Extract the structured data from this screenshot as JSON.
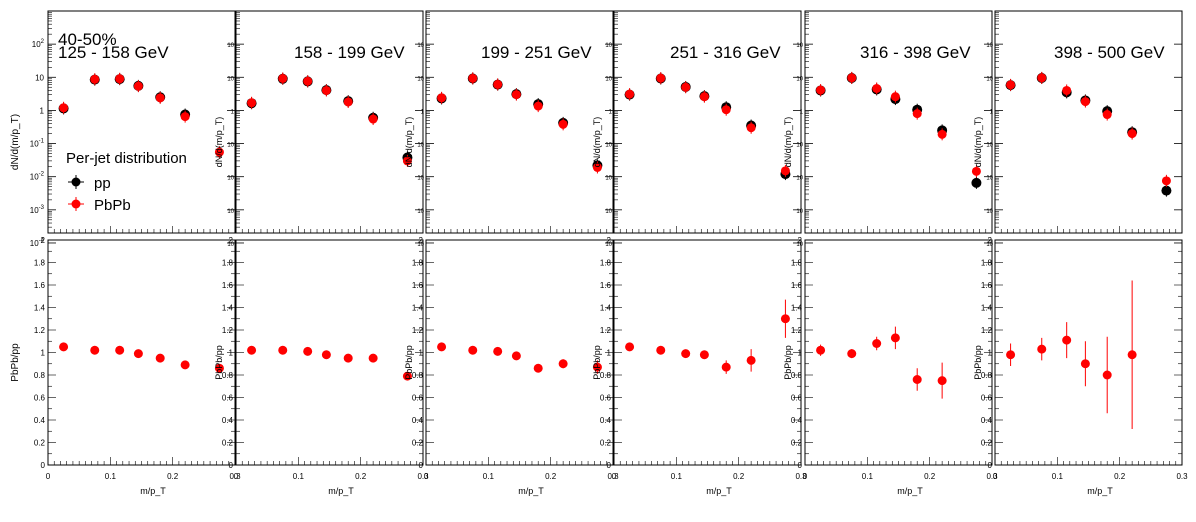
{
  "figure": {
    "centrality": "40-50%",
    "legend_title": "Per-jet distribution",
    "xlabel": "m/p_T",
    "ylabel_top": "dN/d(m/p_T)",
    "ylabel_bottom": "PbPb/pp",
    "colors": {
      "pp": "#000000",
      "PbPb": "#ff0000"
    }
  },
  "chart_data": [
    {
      "type": "scatter",
      "panel": "distribution",
      "label": "125 - 158 GeV",
      "ylabel": "dN/d(m/p_T)",
      "yscale": "log",
      "ylim": [
        0.0002,
        1000
      ],
      "xlim": [
        0,
        0.3
      ],
      "x": [
        0.025,
        0.075,
        0.115,
        0.145,
        0.18,
        0.22,
        0.275
      ],
      "series": [
        {
          "name": "pp",
          "values": [
            1.15,
            8.5,
            8.8,
            5.5,
            2.5,
            0.75,
            null
          ]
        },
        {
          "name": "PbPb",
          "values": [
            1.2,
            8.7,
            9.0,
            5.4,
            2.4,
            0.65,
            0.055
          ]
        }
      ]
    },
    {
      "type": "scatter",
      "panel": "distribution",
      "label": "158 - 199 GeV",
      "ylabel": "dN/d(m/p_T)",
      "yscale": "log",
      "ylim": [
        0.0002,
        1000
      ],
      "xlim": [
        0,
        0.3
      ],
      "x": [
        0.025,
        0.075,
        0.115,
        0.145,
        0.18,
        0.22,
        0.275
      ],
      "series": [
        {
          "name": "pp",
          "values": [
            1.65,
            9.0,
            7.5,
            4.1,
            1.9,
            0.6,
            0.038
          ]
        },
        {
          "name": "PbPb",
          "values": [
            1.7,
            9.2,
            7.6,
            4.0,
            1.8,
            0.55,
            0.03
          ]
        }
      ]
    },
    {
      "type": "scatter",
      "panel": "distribution",
      "label": "199 - 251 GeV",
      "ylabel": "dN/d(m/p_T)",
      "yscale": "log",
      "ylim": [
        0.0002,
        1000
      ],
      "xlim": [
        0,
        0.3
      ],
      "x": [
        0.025,
        0.075,
        0.115,
        0.145,
        0.18,
        0.22,
        0.275
      ],
      "series": [
        {
          "name": "pp",
          "values": [
            2.3,
            9.2,
            6.0,
            3.1,
            1.55,
            0.42,
            0.022
          ]
        },
        {
          "name": "PbPb",
          "values": [
            2.4,
            9.3,
            6.1,
            3.0,
            1.35,
            0.38,
            0.019
          ]
        }
      ]
    },
    {
      "type": "scatter",
      "panel": "distribution",
      "label": "251 - 316 GeV",
      "ylabel": "dN/d(m/p_T)",
      "yscale": "log",
      "ylim": [
        0.0002,
        1000
      ],
      "xlim": [
        0,
        0.3
      ],
      "x": [
        0.025,
        0.075,
        0.115,
        0.145,
        0.18,
        0.22,
        0.275
      ],
      "series": [
        {
          "name": "pp",
          "values": [
            3.0,
            9.2,
            5.1,
            2.7,
            1.25,
            0.35,
            0.012
          ]
        },
        {
          "name": "PbPb",
          "values": [
            3.1,
            9.4,
            5.0,
            2.6,
            1.05,
            0.3,
            0.015
          ]
        }
      ]
    },
    {
      "type": "scatter",
      "panel": "distribution",
      "label": "316 - 398 GeV",
      "ylabel": "dN/d(m/p_T)",
      "yscale": "log",
      "ylim": [
        0.0002,
        1000
      ],
      "xlim": [
        0,
        0.3
      ],
      "x": [
        0.025,
        0.075,
        0.115,
        0.145,
        0.18,
        0.22,
        0.275
      ],
      "series": [
        {
          "name": "pp",
          "values": [
            4.0,
            9.5,
            4.3,
            2.2,
            1.05,
            0.25,
            0.0065
          ]
        },
        {
          "name": "PbPb",
          "values": [
            4.1,
            9.6,
            4.6,
            2.6,
            0.8,
            0.19,
            0.0145
          ]
        }
      ]
    },
    {
      "type": "scatter",
      "panel": "distribution",
      "label": "398 - 500 GeV",
      "ylabel": "dN/d(m/p_T)",
      "yscale": "log",
      "ylim": [
        0.0002,
        1000
      ],
      "xlim": [
        0,
        0.3
      ],
      "x": [
        0.025,
        0.075,
        0.115,
        0.145,
        0.18,
        0.22,
        0.275
      ],
      "series": [
        {
          "name": "pp",
          "values": [
            5.8,
            9.5,
            3.5,
            2.0,
            0.95,
            0.22,
            0.0038
          ]
        },
        {
          "name": "PbPb",
          "values": [
            5.9,
            9.6,
            4.0,
            1.85,
            0.75,
            0.2,
            0.0075
          ]
        }
      ]
    },
    {
      "type": "scatter",
      "panel": "ratio",
      "label": "125 - 158 GeV",
      "ylabel": "PbPb/pp",
      "ylim": [
        0,
        2
      ],
      "xlim": [
        0,
        0.3
      ],
      "x": [
        0.025,
        0.075,
        0.115,
        0.145,
        0.18,
        0.22,
        0.275
      ],
      "series": [
        {
          "name": "PbPb/pp",
          "values": [
            1.05,
            1.02,
            1.02,
            0.99,
            0.95,
            0.89,
            0.86
          ],
          "errors": [
            0.02,
            0.02,
            0.02,
            0.02,
            0.02,
            0.02,
            0.03
          ]
        }
      ]
    },
    {
      "type": "scatter",
      "panel": "ratio",
      "label": "158 - 199 GeV",
      "ylabel": "PbPb/pp",
      "ylim": [
        0,
        2
      ],
      "xlim": [
        0,
        0.3
      ],
      "x": [
        0.025,
        0.075,
        0.115,
        0.145,
        0.18,
        0.22,
        0.275
      ],
      "series": [
        {
          "name": "PbPb/pp",
          "values": [
            1.02,
            1.02,
            1.01,
            0.98,
            0.95,
            0.95,
            0.79
          ],
          "errors": [
            0.02,
            0.02,
            0.02,
            0.02,
            0.02,
            0.02,
            0.03
          ]
        }
      ]
    },
    {
      "type": "scatter",
      "panel": "ratio",
      "label": "199 - 251 GeV",
      "ylabel": "PbPb/pp",
      "ylim": [
        0,
        2
      ],
      "xlim": [
        0,
        0.3
      ],
      "x": [
        0.025,
        0.075,
        0.115,
        0.145,
        0.18,
        0.22,
        0.275
      ],
      "series": [
        {
          "name": "PbPb/pp",
          "values": [
            1.05,
            1.02,
            1.01,
            0.97,
            0.86,
            0.9,
            0.87
          ],
          "errors": [
            0.02,
            0.02,
            0.02,
            0.02,
            0.03,
            0.04,
            0.06
          ]
        }
      ]
    },
    {
      "type": "scatter",
      "panel": "ratio",
      "label": "251 - 316 GeV",
      "ylabel": "PbPb/pp",
      "ylim": [
        0,
        2
      ],
      "xlim": [
        0,
        0.3
      ],
      "x": [
        0.025,
        0.075,
        0.115,
        0.145,
        0.18,
        0.22,
        0.275
      ],
      "series": [
        {
          "name": "PbPb/pp",
          "values": [
            1.05,
            1.02,
            0.99,
            0.98,
            0.87,
            0.93,
            1.3
          ],
          "errors": [
            0.02,
            0.02,
            0.03,
            0.03,
            0.06,
            0.1,
            0.17
          ]
        }
      ]
    },
    {
      "type": "scatter",
      "panel": "ratio",
      "label": "316 - 398 GeV",
      "ylabel": "PbPb/pp",
      "ylim": [
        0,
        2
      ],
      "xlim": [
        0,
        0.3
      ],
      "x": [
        0.025,
        0.075,
        0.115,
        0.145,
        0.18,
        0.22,
        0.275
      ],
      "series": [
        {
          "name": "PbPb/pp",
          "values": [
            1.02,
            0.99,
            1.08,
            1.13,
            0.76,
            0.75,
            null
          ],
          "errors": [
            0.05,
            0.04,
            0.06,
            0.1,
            0.1,
            0.16,
            null
          ]
        }
      ]
    },
    {
      "type": "scatter",
      "panel": "ratio",
      "label": "398 - 500 GeV",
      "ylabel": "PbPb/pp",
      "ylim": [
        0,
        2
      ],
      "xlim": [
        0,
        0.3
      ],
      "x": [
        0.025,
        0.075,
        0.115,
        0.145,
        0.18,
        0.22,
        0.275
      ],
      "series": [
        {
          "name": "PbPb/pp",
          "values": [
            0.98,
            1.03,
            1.11,
            0.9,
            0.8,
            0.98,
            null
          ],
          "errors": [
            0.1,
            0.1,
            0.16,
            0.2,
            0.34,
            0.66,
            null
          ]
        }
      ]
    }
  ]
}
